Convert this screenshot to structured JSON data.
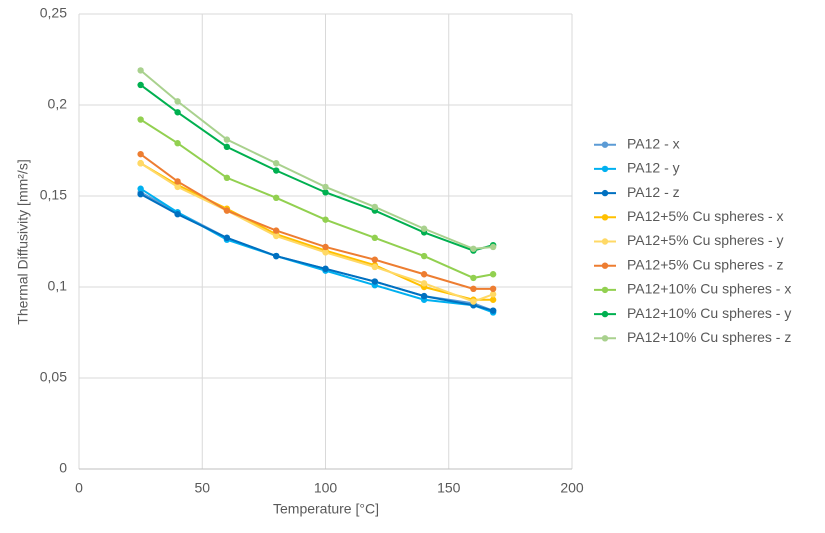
{
  "chart_data": {
    "type": "line",
    "x_label": "Temperature [°C]",
    "y_label": "Thermal Diffusivity [mm²/s]",
    "x": [
      25,
      40,
      60,
      80,
      100,
      120,
      140,
      160,
      168
    ],
    "series": [
      {
        "name": "PA12 - x",
        "color": "#5b9bd5",
        "values": [
          0.152,
          0.141,
          0.127,
          0.117,
          0.11,
          0.103,
          0.095,
          0.091,
          0.087
        ]
      },
      {
        "name": "PA12 - y",
        "color": "#00b0f0",
        "values": [
          0.154,
          0.141,
          0.126,
          0.117,
          0.109,
          0.101,
          0.093,
          0.09,
          0.086
        ]
      },
      {
        "name": "PA12 - z",
        "color": "#0070c0",
        "values": [
          0.151,
          0.14,
          0.127,
          0.117,
          0.11,
          0.103,
          0.095,
          0.09,
          0.087
        ]
      },
      {
        "name": "PA12+5% Cu spheres - x",
        "color": "#ffc000",
        "values": [
          0.168,
          0.156,
          0.143,
          0.129,
          0.12,
          0.112,
          0.1,
          0.093,
          0.093
        ]
      },
      {
        "name": "PA12+5% Cu spheres - y",
        "color": "#ffd966",
        "values": [
          0.168,
          0.155,
          0.142,
          0.128,
          0.119,
          0.111,
          0.102,
          0.092,
          0.096
        ]
      },
      {
        "name": "PA12+5% Cu spheres - z",
        "color": "#ed7d31",
        "values": [
          0.173,
          0.158,
          0.142,
          0.131,
          0.122,
          0.115,
          0.107,
          0.099,
          0.099
        ]
      },
      {
        "name": "PA12+10% Cu spheres - x",
        "color": "#92d050",
        "values": [
          0.192,
          0.179,
          0.16,
          0.149,
          0.137,
          0.127,
          0.117,
          0.105,
          0.107
        ]
      },
      {
        "name": "PA12+10% Cu spheres - y",
        "color": "#00b050",
        "values": [
          0.211,
          0.196,
          0.177,
          0.164,
          0.152,
          0.142,
          0.13,
          0.12,
          0.123
        ]
      },
      {
        "name": "PA12+10% Cu spheres - z",
        "color": "#a9d18e",
        "values": [
          0.219,
          0.202,
          0.181,
          0.168,
          0.155,
          0.144,
          0.132,
          0.121,
          0.122
        ]
      }
    ],
    "xlim": [
      0,
      200
    ],
    "xticks": [
      0,
      50,
      100,
      150,
      200
    ],
    "ylim": [
      0,
      0.25
    ],
    "yticks": [
      0,
      {
        "value": 0.05,
        "label": "0,05"
      },
      {
        "value": 0.1,
        "label": "0,1"
      },
      {
        "value": 0.15,
        "label": "0,15"
      },
      {
        "value": 0.2,
        "label": "0,2"
      },
      {
        "value": 0.25,
        "label": "0,25"
      }
    ],
    "grid": true,
    "legend": "right"
  }
}
